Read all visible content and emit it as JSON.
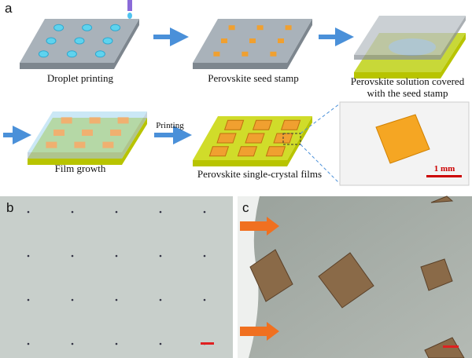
{
  "panel_a": {
    "label": "a",
    "steps": [
      [
        "Droplet printing"
      ],
      [
        "Perovskite seed stamp"
      ],
      [
        "Perovskite solution covered",
        "with the seed stamp"
      ],
      [
        "Film growth"
      ],
      [
        "Perovskite single-crystal films"
      ]
    ],
    "arrow_label": "Printing",
    "scale_label": "1 mm"
  },
  "panel_b": {
    "label": "b"
  },
  "panel_c": {
    "label": "c"
  }
}
